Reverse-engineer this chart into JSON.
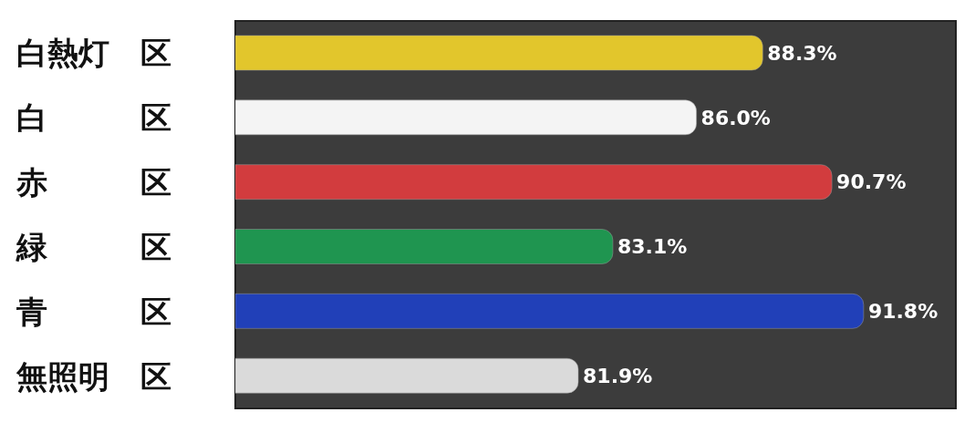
{
  "chart_data": {
    "type": "bar",
    "orientation": "horizontal",
    "categories": [
      "白熱灯　区",
      "白　　　区",
      "赤　　　区",
      "緑　　　区",
      "青　　　区",
      "無照明　区"
    ],
    "values": [
      88.3,
      86.0,
      90.7,
      83.1,
      91.8,
      81.9
    ],
    "colors": [
      "#e2c62c",
      "#f4f4f4",
      "#d23c3e",
      "#1f9550",
      "#2140b8",
      "#dadada"
    ],
    "value_labels": [
      "88.3%",
      "86.0%",
      "90.7%",
      "83.1%",
      "91.8%",
      "81.9%"
    ],
    "xlim": [
      70,
      95
    ],
    "tick_labels": "y",
    "legend": false
  }
}
